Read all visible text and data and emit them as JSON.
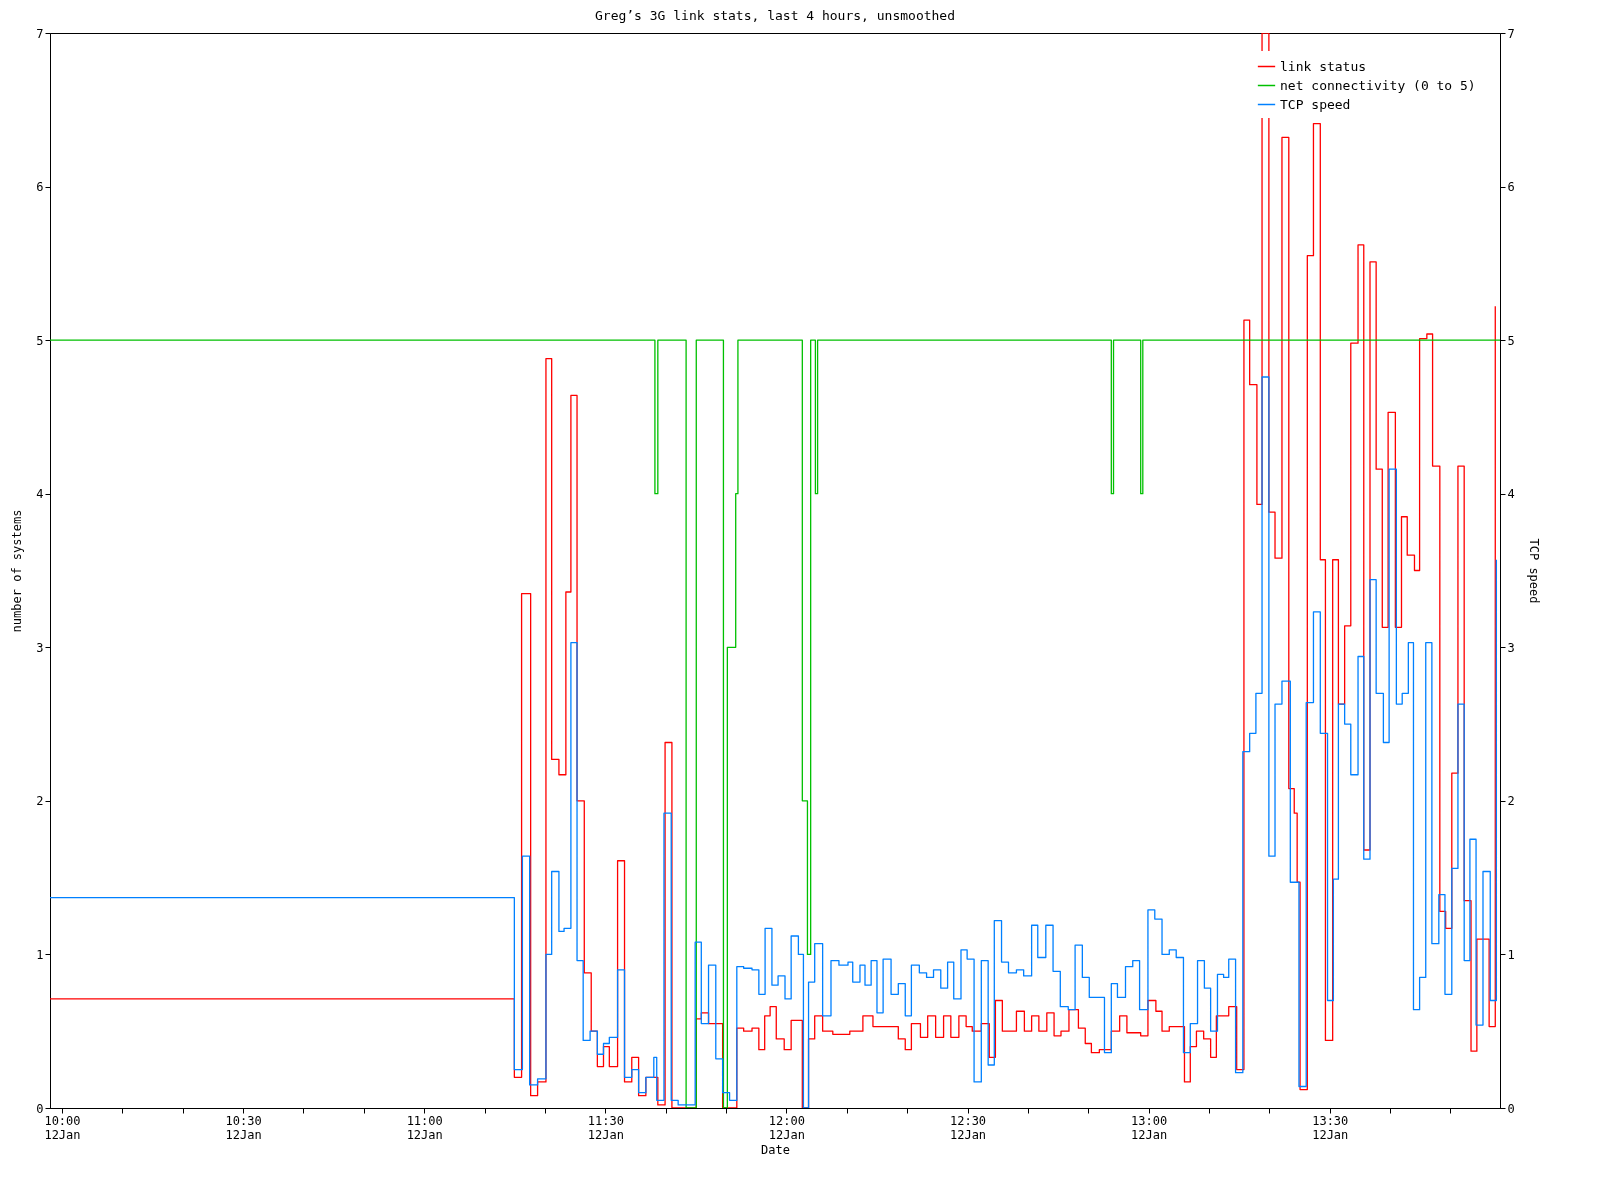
{
  "chart_data": {
    "type": "step",
    "title": "Greg’s 3G link stats, last 4 hours, unsmoothed",
    "xlabel": "Date",
    "ylabel": "number of systems",
    "y2label": "TCP speed",
    "xlim": [
      "--01-12T09:58:01",
      "--01-12T13:58:12"
    ],
    "ylim": [
      0,
      7
    ],
    "yticks": [
      0,
      1,
      2,
      3,
      4,
      5,
      6,
      7
    ],
    "y2lim": [
      0,
      7
    ],
    "y2ticks": [
      0,
      1,
      2,
      3,
      4,
      5,
      6,
      7
    ],
    "xticks": [
      {
        "value": "--01-12T10:00",
        "label": "10:00\n12Jan"
      },
      {
        "value": "--01-12T10:10",
        "label": null
      },
      {
        "value": "--01-12T10:20",
        "label": null
      },
      {
        "value": "--01-12T10:30",
        "label": "10:30\n12Jan"
      },
      {
        "value": "--01-12T10:40",
        "label": null
      },
      {
        "value": "--01-12T10:50",
        "label": null
      },
      {
        "value": "--01-12T11:00",
        "label": "11:00\n12Jan"
      },
      {
        "value": "--01-12T11:10",
        "label": null
      },
      {
        "value": "--01-12T11:20",
        "label": null
      },
      {
        "value": "--01-12T11:30",
        "label": "11:30\n12Jan"
      },
      {
        "value": "--01-12T11:40",
        "label": null
      },
      {
        "value": "--01-12T11:50",
        "label": null
      },
      {
        "value": "--01-12T12:00",
        "label": "12:00\n12Jan"
      },
      {
        "value": "--01-12T12:10",
        "label": null
      },
      {
        "value": "--01-12T12:20",
        "label": null
      },
      {
        "value": "--01-12T12:30",
        "label": "12:30\n12Jan"
      },
      {
        "value": "--01-12T12:40",
        "label": null
      },
      {
        "value": "--01-12T12:50",
        "label": null
      },
      {
        "value": "--01-12T13:00",
        "label": "13:00\n12Jan"
      },
      {
        "value": "--01-12T13:10",
        "label": null
      },
      {
        "value": "--01-12T13:20",
        "label": null
      },
      {
        "value": "--01-12T13:30",
        "label": "13:30\n12Jan"
      },
      {
        "value": "--01-12T13:40",
        "label": null
      },
      {
        "value": "--01-12T13:50",
        "label": null
      }
    ],
    "legend": "top right",
    "grid": false,
    "marker": "none",
    "line_style": "solid",
    "series": [
      {
        "name": "link status",
        "color": "#ff0000",
        "x": [
          "--01-12T09:58:01",
          "--01-12T11:14:56",
          "--01-12T11:16:08",
          "--01-12T11:17:38",
          "--01-12T11:18:47",
          "--01-12T11:20:10",
          "--01-12T11:21:07",
          "--01-12T11:22:19",
          "--01-12T11:23:28",
          "--01-12T11:24:18",
          "--01-12T11:25:19",
          "--01-12T11:26:31",
          "--01-12T11:27:40",
          "--01-12T11:28:41",
          "--01-12T11:29:42",
          "--01-12T11:30:40",
          "--01-12T11:32:02",
          "--01-12T11:33:11",
          "--01-12T11:34:23",
          "--01-12T11:35:31",
          "--01-12T11:36:43",
          "--01-12T11:38:42",
          "--01-12T11:39:54",
          "--01-12T11:41:02",
          "--01-12T11:45:04",
          "--01-12T11:45:54",
          "--01-12T11:47:06",
          "--01-12T11:49:26",
          "--01-12T11:51:47",
          "--01-12T11:52:55",
          "--01-12T11:54:18",
          "--01-12T11:55:26",
          "--01-12T11:56:24",
          "--01-12T11:57:18",
          "--01-12T11:58:19",
          "--01-12T11:59:38",
          "--01-12T12:00:47",
          "--01-12T12:02:38",
          "--01-12T12:03:40",
          "--01-12T12:04:41",
          "--01-12T12:06:00",
          "--01-12T12:07:41",
          "--01-12T12:10:30",
          "--01-12T12:12:40",
          "--01-12T12:14:20",
          "--01-12T12:18:32",
          "--01-12T12:19:41",
          "--01-12T12:20:42",
          "--01-12T12:22:12",
          "--01-12T12:23:24",
          "--01-12T12:24:43",
          "--01-12T12:26:02",
          "--01-12T12:27:14",
          "--01-12T12:28:34",
          "--01-12T12:29:46",
          "--01-12T12:30:47",
          "--01-12T12:32:17",
          "--01-12T12:33:36",
          "--01-12T12:34:37",
          "--01-12T12:35:46",
          "--01-12T12:38:06",
          "--01-12T12:39:25",
          "--01-12T12:40:37",
          "--01-12T12:41:49",
          "--01-12T12:43:08",
          "--01-12T12:44:20",
          "--01-12T12:45:29",
          "--01-12T12:46:48",
          "--01-12T12:48:22",
          "--01-12T12:49:30",
          "--01-12T12:50:31",
          "--01-12T12:51:50",
          "--01-12T12:53:49",
          "--01-12T12:55:12",
          "--01-12T12:56:24",
          "--01-12T12:58:41",
          "--01-12T12:59:53",
          "--01-12T13:01:12",
          "--01-12T13:02:13",
          "--01-12T13:03:25",
          "--01-12T13:05:56",
          "--01-12T13:06:54",
          "--01-12T13:07:55",
          "--01-12T13:09:07",
          "--01-12T13:10:16",
          "--01-12T13:11:13",
          "--01-12T13:13:16",
          "--01-12T13:14:35",
          "--01-12T13:15:47",
          "--01-12T13:16:44",
          "--01-12T13:17:56",
          "--01-12T13:18:47",
          "--01-12T13:19:55",
          "--01-12T13:20:56",
          "--01-12T13:22:05",
          "--01-12T13:23:13",
          "--01-12T13:24:07",
          "--01-12T13:24:36",
          "--01-12T13:25:05",
          "--01-12T13:26:17",
          "--01-12T13:27:18",
          "--01-12T13:28:26",
          "--01-12T13:29:17",
          "--01-12T13:30:29",
          "--01-12T13:31:26",
          "--01-12T13:32:28",
          "--01-12T13:33:29",
          "--01-12T13:34:41",
          "--01-12T13:35:38",
          "--01-12T13:36:40",
          "--01-12T13:37:41",
          "--01-12T13:38:42",
          "--01-12T13:39:40",
          "--01-12T13:40:52",
          "--01-12T13:41:53",
          "--01-12T13:42:50",
          "--01-12T13:44:02",
          "--01-12T13:44:53",
          "--01-12T13:46:05",
          "--01-12T13:47:02",
          "--01-12T13:48:14",
          "--01-12T13:49:12",
          "--01-12T13:50:13",
          "--01-12T13:51:14",
          "--01-12T13:52:16",
          "--01-12T13:53:24",
          "--01-12T13:54:22",
          "--01-12T13:56:24",
          "--01-12T13:57:25"
        ],
        "values": [
          0.71,
          0.2,
          3.35,
          0.08,
          0.17,
          4.88,
          2.27,
          2.17,
          3.36,
          4.64,
          2.0,
          0.88,
          0.5,
          0.27,
          0.4,
          0.27,
          1.61,
          0.17,
          0.33,
          0.08,
          0.2,
          0.02,
          2.38,
          0,
          0.58,
          0.62,
          0.55,
          0,
          0.52,
          0.5,
          0.52,
          0.38,
          0.6,
          0.66,
          0.45,
          0.38,
          0.57,
          0,
          0.45,
          0.6,
          0.5,
          0.48,
          0.5,
          0.6,
          0.53,
          0.45,
          0.38,
          0.55,
          0.46,
          0.6,
          0.46,
          0.6,
          0.46,
          0.6,
          0.53,
          0.5,
          0.55,
          0.33,
          0.7,
          0.5,
          0.63,
          0.5,
          0.6,
          0.5,
          0.62,
          0.47,
          0.5,
          0.64,
          0.52,
          0.42,
          0.36,
          0.38,
          0.5,
          0.6,
          0.49,
          0.47,
          0.7,
          0.63,
          0.5,
          0.53,
          0.17,
          0.4,
          0.5,
          0.45,
          0.33,
          0.6,
          0.66,
          0.25,
          5.13,
          4.71,
          3.93,
          7.0,
          3.88,
          3.58,
          6.32,
          2.08,
          1.92,
          1.47,
          0.12,
          5.55,
          6.41,
          3.57,
          0.44,
          3.57,
          2.63,
          3.14,
          4.98,
          5.62,
          1.68,
          5.51,
          4.16,
          3.13,
          4.53,
          3.13,
          3.85,
          3.6,
          3.5,
          5.01,
          5.04,
          4.18,
          1.28,
          1.17,
          2.18,
          4.18,
          1.35,
          0.37,
          1.1,
          0.53,
          5.22
        ]
      },
      {
        "name": "net connectivity (0 to 5)",
        "color": "#00c000",
        "x": [
          "--01-12T09:58:01",
          "--01-12T11:38:13",
          "--01-12T11:38:42",
          "--01-12T11:43:23",
          "--01-12T11:45:04",
          "--01-12T11:49:34",
          "--01-12T11:50:13",
          "--01-12T11:51:36",
          "--01-12T11:51:58",
          "--01-12T12:02:38",
          "--01-12T12:03:29",
          "--01-12T12:04:01",
          "--01-12T12:04:48",
          "--01-12T12:05:10",
          "--01-12T12:53:49",
          "--01-12T12:54:11",
          "--01-12T12:58:41",
          "--01-12T12:59:02",
          "--01-12T13:58:12"
        ],
        "values": [
          5,
          4,
          5,
          0,
          5,
          0,
          3,
          4,
          5,
          2,
          1,
          5,
          4,
          5,
          4,
          5,
          4,
          5,
          5
        ]
      },
      {
        "name": "TCP speed",
        "color": "#0080ff",
        "axis": "y2",
        "x": [
          "--01-12T09:58:01",
          "--01-12T11:14:56",
          "--01-12T11:16:16",
          "--01-12T11:17:28",
          "--01-12T11:18:47",
          "--01-12T11:20:10",
          "--01-12T11:21:07",
          "--01-12T11:22:19",
          "--01-12T11:23:10",
          "--01-12T11:24:18",
          "--01-12T11:25:19",
          "--01-12T11:26:20",
          "--01-12T11:27:29",
          "--01-12T11:28:41",
          "--01-12T11:29:42",
          "--01-12T11:30:40",
          "--01-12T11:32:02",
          "--01-12T11:33:11",
          "--01-12T11:34:23",
          "--01-12T11:35:31",
          "--01-12T11:36:43",
          "--01-12T11:38:02",
          "--01-12T11:38:31",
          "--01-12T11:39:43",
          "--01-12T11:40:55",
          "--01-12T11:42:04",
          "--01-12T11:44:53",
          "--01-12T11:45:54",
          "--01-12T11:47:06",
          "--01-12T11:48:18",
          "--01-12T11:49:26",
          "--01-12T11:50:35",
          "--01-12T11:51:47",
          "--01-12T11:52:55",
          "--01-12T11:54:18",
          "--01-12T11:55:26",
          "--01-12T11:56:28",
          "--01-12T11:57:36",
          "--01-12T11:58:37",
          "--01-12T11:59:46",
          "--01-12T12:00:47",
          "--01-12T12:01:59",
          "--01-12T12:02:49",
          "--01-12T12:03:40",
          "--01-12T12:04:41",
          "--01-12T12:06:00",
          "--01-12T12:07:23",
          "--01-12T12:08:42",
          "--01-12T12:10:12",
          "--01-12T12:10:59",
          "--01-12T12:12:11",
          "--01-12T12:13:01",
          "--01-12T12:14:02",
          "--01-12T12:15:00",
          "--01-12T12:16:01",
          "--01-12T12:17:20",
          "--01-12T12:18:32",
          "--01-12T12:19:41",
          "--01-12T12:20:42",
          "--01-12T12:22:01",
          "--01-12T12:23:13",
          "--01-12T12:24:22",
          "--01-12T12:25:34",
          "--01-12T12:26:42",
          "--01-12T12:27:43",
          "--01-12T12:28:55",
          "--01-12T12:29:56",
          "--01-12T12:31:05",
          "--01-12T12:32:17",
          "--01-12T12:33:25",
          "--01-12T12:34:26",
          "--01-12T12:35:38",
          "--01-12T12:36:47",
          "--01-12T12:38:06",
          "--01-12T12:39:18",
          "--01-12T12:40:37",
          "--01-12T12:41:38",
          "--01-12T12:42:58",
          "--01-12T12:44:10",
          "--01-12T12:45:22",
          "--01-12T12:46:41",
          "--01-12T12:47:49",
          "--01-12T12:49:01",
          "--01-12T12:50:10",
          "--01-12T12:51:29",
          "--01-12T12:52:41",
          "--01-12T12:53:49",
          "--01-12T12:54:50",
          "--01-12T12:56:10",
          "--01-12T12:57:22",
          "--01-12T12:58:30",
          "--01-12T12:59:53",
          "--01-12T13:01:01",
          "--01-12T13:02:13",
          "--01-12T13:03:25",
          "--01-12T13:04:34",
          "--01-12T13:05:46",
          "--01-12T13:06:54",
          "--01-12T13:08:06",
          "--01-12T13:09:14",
          "--01-12T13:10:16",
          "--01-12T13:11:24",
          "--01-12T13:12:25",
          "--01-12T13:13:16",
          "--01-12T13:14:24",
          "--01-12T13:15:36",
          "--01-12T13:16:44",
          "--01-12T13:17:46",
          "--01-12T13:18:47",
          "--01-12T13:19:55",
          "--01-12T13:20:56",
          "--01-12T13:22:05",
          "--01-12T13:23:28",
          "--01-12T13:24:54",
          "--01-12T13:26:06",
          "--01-12T13:27:18",
          "--01-12T13:28:26",
          "--01-12T13:29:38",
          "--01-12T13:30:36",
          "--01-12T13:31:26",
          "--01-12T13:32:28",
          "--01-12T13:33:29",
          "--01-12T13:34:41",
          "--01-12T13:35:38",
          "--01-12T13:36:40",
          "--01-12T13:37:41",
          "--01-12T13:38:53",
          "--01-12T13:39:50",
          "--01-12T13:41:02",
          "--01-12T13:42:00",
          "--01-12T13:43:01",
          "--01-12T13:43:52",
          "--01-12T13:44:53",
          "--01-12T13:45:54",
          "--01-12T13:46:55",
          "--01-12T13:48:04",
          "--01-12T13:49:05",
          "--01-12T13:50:13",
          "--01-12T13:51:14",
          "--01-12T13:52:16",
          "--01-12T13:53:13",
          "--01-12T13:54:14",
          "--01-12T13:55:23",
          "--01-12T13:56:35",
          "--01-12T13:57:36"
        ],
        "values": [
          1.37,
          0.25,
          1.64,
          0.15,
          0.19,
          1.0,
          1.54,
          1.15,
          1.17,
          3.03,
          0.96,
          0.44,
          0.5,
          0.35,
          0.42,
          0.46,
          0.9,
          0.2,
          0.25,
          0.1,
          0.2,
          0.33,
          0.05,
          1.92,
          0.05,
          0.02,
          1.08,
          0.55,
          0.93,
          0.32,
          0.1,
          0.05,
          0.92,
          0.91,
          0.9,
          0.74,
          1.17,
          0.8,
          0.86,
          0.71,
          1.12,
          1.0,
          0.0,
          0.82,
          1.07,
          0.6,
          0.96,
          0.93,
          0.95,
          0.82,
          0.93,
          0.8,
          0.96,
          0.62,
          0.97,
          0.74,
          0.81,
          0.6,
          0.93,
          0.88,
          0.85,
          0.9,
          0.78,
          0.95,
          0.71,
          1.03,
          0.97,
          0.17,
          0.96,
          0.28,
          1.22,
          0.95,
          0.88,
          0.9,
          0.86,
          1.19,
          0.98,
          1.19,
          0.89,
          0.66,
          0.64,
          1.06,
          0.85,
          0.72,
          0.72,
          0.36,
          0.81,
          0.72,
          0.92,
          0.96,
          0.64,
          1.29,
          1.23,
          1.0,
          1.03,
          0.98,
          0.36,
          0.55,
          0.96,
          0.78,
          0.5,
          0.87,
          0.85,
          0.97,
          0.23,
          2.32,
          2.44,
          2.7,
          4.76,
          1.64,
          2.63,
          2.78,
          1.47,
          0.14,
          2.64,
          3.23,
          2.44,
          0.7,
          1.49,
          2.63,
          2.5,
          2.17,
          2.94,
          1.62,
          3.44,
          2.7,
          2.38,
          4.16,
          2.63,
          2.7,
          3.03,
          0.64,
          0.85,
          3.03,
          1.07,
          1.39,
          0.74,
          1.56,
          2.63,
          0.96,
          1.75,
          0.54,
          1.54,
          0.7,
          3.57
        ]
      }
    ]
  }
}
